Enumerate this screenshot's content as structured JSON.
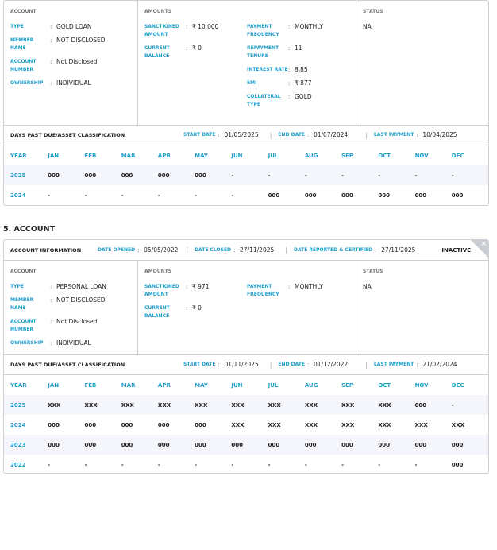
{
  "accounts": [
    {
      "info": null,
      "section_labels": {
        "account": "ACCOUNT",
        "amounts": "AMOUNTS",
        "status": "STATUS"
      },
      "account": [
        {
          "label": "TYPE",
          "value": "GOLD LOAN"
        },
        {
          "label": "MEMBER NAME",
          "value": "NOT DISCLOSED"
        },
        {
          "label": "ACCOUNT NUMBER",
          "value": "Not Disclosed"
        },
        {
          "label": "OWNERSHIP",
          "value": "INDIVIDUAL"
        }
      ],
      "amounts_left": [
        {
          "label": "SANCTIONED AMOUNT",
          "value": "₹ 10,000"
        },
        {
          "label": "CURRENT BALANCE",
          "value": "₹ 0"
        }
      ],
      "amounts_right": [
        {
          "label": "PAYMENT FREQUENCY",
          "value": "MONTHLY"
        },
        {
          "label": "REPAYMENT TENURE",
          "value": "11"
        },
        {
          "label": "INTEREST RATE",
          "value": "8.85"
        },
        {
          "label": "EMI",
          "value": "₹ 877"
        },
        {
          "label": "COLLATERAL TYPE",
          "value": "GOLD"
        }
      ],
      "status": "NA",
      "dpd": {
        "title": "DAYS PAST DUE/ASSET CLASSIFICATION",
        "start_label": "START DATE",
        "start": "01/05/2025",
        "end_label": "END DATE",
        "end": "01/07/2024",
        "last_label": "LAST PAYMENT",
        "last": "10/04/2025"
      },
      "table": {
        "headers": [
          "YEAR",
          "JAN",
          "FEB",
          "MAR",
          "APR",
          "MAY",
          "JUN",
          "JUL",
          "AUG",
          "SEP",
          "OCT",
          "NOV",
          "DEC"
        ],
        "rows": [
          [
            "2025",
            "000",
            "000",
            "000",
            "000",
            "000",
            "-",
            "-",
            "-",
            "-",
            "-",
            "-",
            "-"
          ],
          [
            "2024",
            "-",
            "-",
            "-",
            "-",
            "-",
            "-",
            "000",
            "000",
            "000",
            "000",
            "000",
            "000"
          ]
        ]
      }
    },
    {
      "title": "5. ACCOUNT",
      "info": {
        "title": "ACCOUNT INFORMATION",
        "opened_label": "DATE OPENED",
        "opened": "05/05/2022",
        "closed_label": "DATE CLOSED",
        "closed": "27/11/2025",
        "reported_label": "DATE REPORTED & CERTIFIED",
        "reported": "27/11/2025",
        "state": "INACTIVE",
        "close": "×"
      },
      "section_labels": {
        "account": "ACCOUNT",
        "amounts": "AMOUNTS",
        "status": "STATUS"
      },
      "account": [
        {
          "label": "TYPE",
          "value": "PERSONAL LOAN"
        },
        {
          "label": "MEMBER NAME",
          "value": "NOT DISCLOSED"
        },
        {
          "label": "ACCOUNT NUMBER",
          "value": "Not Disclosed"
        },
        {
          "label": "OWNERSHIP",
          "value": "INDIVIDUAL"
        }
      ],
      "amounts_left": [
        {
          "label": "SANCTIONED AMOUNT",
          "value": "₹ 971"
        },
        {
          "label": "CURRENT BALANCE",
          "value": "₹ 0"
        }
      ],
      "amounts_right": [
        {
          "label": "PAYMENT FREQUENCY",
          "value": "MONTHLY"
        }
      ],
      "status": "NA",
      "dpd": {
        "title": "DAYS PAST DUE/ASSET CLASSIFICATION",
        "start_label": "START DATE",
        "start": "01/11/2025",
        "end_label": "END DATE",
        "end": "01/12/2022",
        "last_label": "LAST PAYMENT",
        "last": "21/02/2024"
      },
      "table": {
        "headers": [
          "YEAR",
          "JAN",
          "FEB",
          "MAR",
          "APR",
          "MAY",
          "JUN",
          "JUL",
          "AUG",
          "SEP",
          "OCT",
          "NOV",
          "DEC"
        ],
        "rows": [
          [
            "2025",
            "XXX",
            "XXX",
            "XXX",
            "XXX",
            "XXX",
            "XXX",
            "XXX",
            "XXX",
            "XXX",
            "XXX",
            "000",
            "-"
          ],
          [
            "2024",
            "000",
            "000",
            "000",
            "000",
            "000",
            "XXX",
            "XXX",
            "XXX",
            "XXX",
            "XXX",
            "XXX",
            "XXX"
          ],
          [
            "2023",
            "000",
            "000",
            "000",
            "000",
            "000",
            "000",
            "000",
            "000",
            "000",
            "000",
            "000",
            "000"
          ],
          [
            "2022",
            "-",
            "-",
            "-",
            "-",
            "-",
            "-",
            "-",
            "-",
            "-",
            "-",
            "-",
            "000"
          ]
        ]
      }
    }
  ]
}
